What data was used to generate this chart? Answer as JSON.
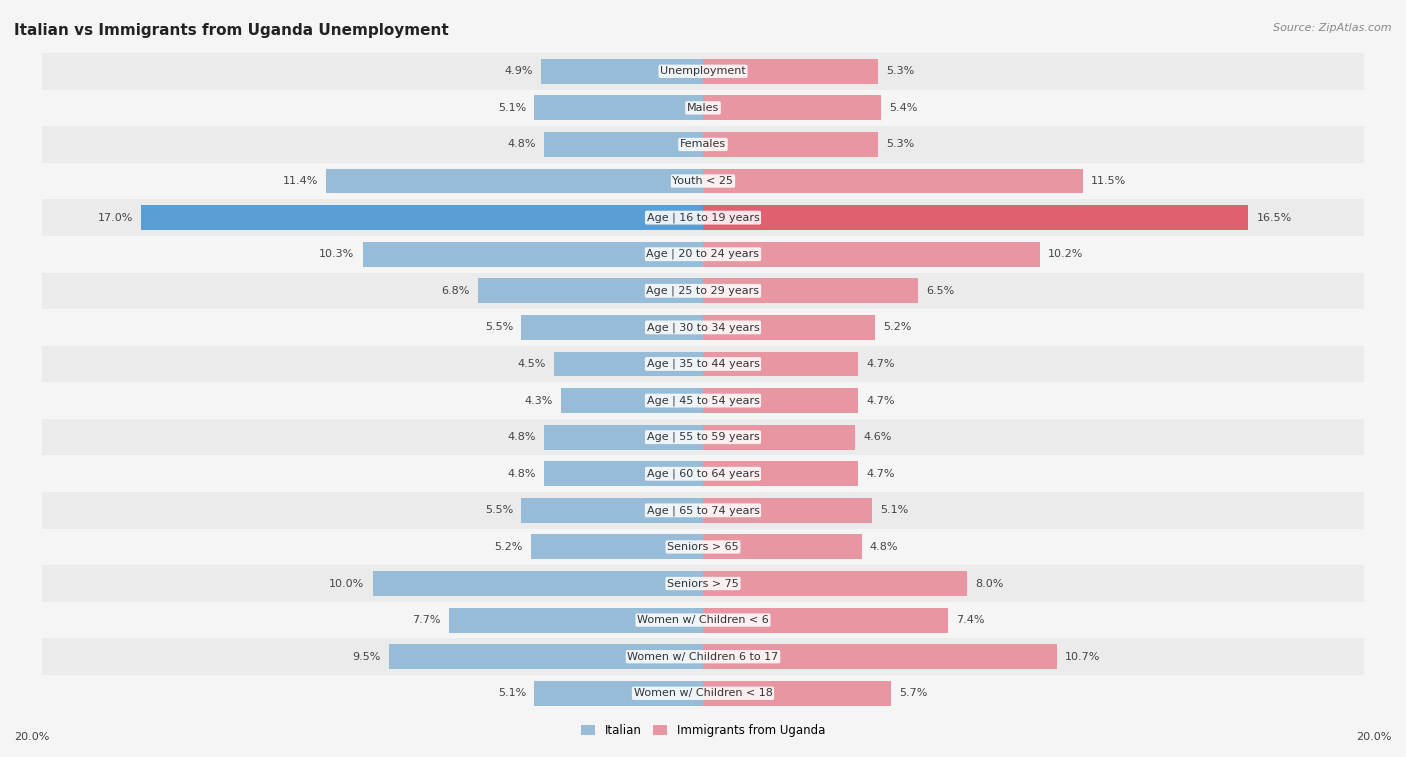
{
  "title": "Italian vs Immigrants from Uganda Unemployment",
  "source": "Source: ZipAtlas.com",
  "categories": [
    "Unemployment",
    "Males",
    "Females",
    "Youth < 25",
    "Age | 16 to 19 years",
    "Age | 20 to 24 years",
    "Age | 25 to 29 years",
    "Age | 30 to 34 years",
    "Age | 35 to 44 years",
    "Age | 45 to 54 years",
    "Age | 55 to 59 years",
    "Age | 60 to 64 years",
    "Age | 65 to 74 years",
    "Seniors > 65",
    "Seniors > 75",
    "Women w/ Children < 6",
    "Women w/ Children 6 to 17",
    "Women w/ Children < 18"
  ],
  "italian": [
    4.9,
    5.1,
    4.8,
    11.4,
    17.0,
    10.3,
    6.8,
    5.5,
    4.5,
    4.3,
    4.8,
    4.8,
    5.5,
    5.2,
    10.0,
    7.7,
    9.5,
    5.1
  ],
  "uganda": [
    5.3,
    5.4,
    5.3,
    11.5,
    16.5,
    10.2,
    6.5,
    5.2,
    4.7,
    4.7,
    4.6,
    4.7,
    5.1,
    4.8,
    8.0,
    7.4,
    10.7,
    5.7
  ],
  "italian_color": "#97bcd8",
  "uganda_color": "#e896a2",
  "italian_highlight_color": "#5a9fd4",
  "uganda_highlight_color": "#e06070",
  "xlim": 20.0,
  "row_colors": [
    "#ebebeb",
    "#f5f5f5"
  ],
  "fig_bg": "#f5f5f5",
  "legend_italian": "Italian",
  "legend_uganda": "Immigrants from Uganda",
  "title_fontsize": 11,
  "label_fontsize": 8,
  "value_fontsize": 8,
  "source_fontsize": 8
}
